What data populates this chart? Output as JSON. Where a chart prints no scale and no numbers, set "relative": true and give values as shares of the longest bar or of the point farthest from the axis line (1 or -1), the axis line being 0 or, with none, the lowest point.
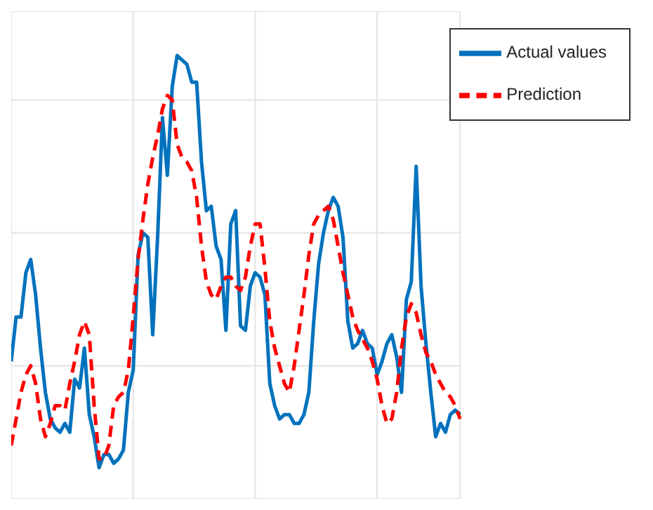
{
  "chart_data": {
    "type": "line",
    "relative": true,
    "grid": true,
    "legend": "top right",
    "marker": "none",
    "categories": [
      null,
      null,
      null,
      null,
      null,
      null,
      null,
      null,
      null,
      null,
      null,
      null,
      null,
      null,
      null,
      null,
      null,
      null,
      null,
      null,
      null,
      null,
      null,
      null,
      null,
      null,
      null,
      null,
      null,
      null,
      null,
      null,
      null,
      null,
      null,
      null,
      null,
      null,
      null,
      null,
      null,
      null,
      null,
      null,
      null,
      null,
      null,
      null,
      null,
      null,
      null,
      null,
      null,
      null,
      null,
      null,
      null,
      null,
      null,
      null,
      null,
      null,
      null,
      null,
      null,
      null,
      null,
      null,
      null,
      null,
      null,
      null,
      null,
      null,
      null,
      null,
      null,
      null,
      null,
      null,
      null,
      null,
      null,
      null,
      null,
      null,
      null,
      null,
      null,
      null,
      null,
      null,
      null
    ],
    "series": [
      {
        "name": "Actual values",
        "color": "#0072bd",
        "line_style": "solid",
        "values": [
          0.31,
          0.41,
          0.41,
          0.51,
          0.54,
          0.46,
          0.34,
          0.24,
          0.18,
          0.16,
          0.15,
          0.17,
          0.15,
          0.27,
          0.25,
          0.34,
          0.19,
          0.14,
          0.07,
          0.1,
          0.1,
          0.08,
          0.09,
          0.11,
          0.24,
          0.29,
          0.55,
          0.6,
          0.59,
          0.37,
          0.59,
          0.86,
          0.73,
          0.93,
          1,
          0.99,
          0.98,
          0.94,
          0.94,
          0.76,
          0.65,
          0.66,
          0.57,
          0.54,
          0.38,
          0.62,
          0.65,
          0.39,
          0.38,
          0.48,
          0.51,
          0.5,
          0.46,
          0.26,
          0.21,
          0.18,
          0.19,
          0.19,
          0.17,
          0.17,
          0.19,
          0.24,
          0.4,
          0.53,
          0.6,
          0.65,
          0.68,
          0.66,
          0.59,
          0.4,
          0.34,
          0.35,
          0.38,
          0.35,
          0.34,
          0.28,
          0.31,
          0.35,
          0.37,
          0.32,
          0.24,
          0.45,
          0.49,
          0.75,
          0.48,
          0.35,
          0.24,
          0.14,
          0.17,
          0.15,
          0.19,
          0.2,
          0.19
        ]
      },
      {
        "name": "Prediction",
        "color": "#ff0000",
        "line_style": "dashed",
        "values": [
          0.12,
          0.18,
          0.24,
          0.28,
          0.3,
          0.26,
          0.18,
          0.14,
          0.17,
          0.21,
          0.21,
          0.2,
          0.26,
          0.31,
          0.37,
          0.4,
          0.37,
          0.21,
          0.09,
          0.09,
          0.12,
          0.21,
          0.23,
          0.24,
          0.29,
          0.41,
          0.54,
          0.63,
          0.71,
          0.77,
          0.82,
          0.88,
          0.91,
          0.9,
          0.8,
          0.77,
          0.76,
          0.74,
          0.68,
          0.57,
          0.49,
          0.46,
          0.45,
          0.48,
          0.5,
          0.5,
          0.48,
          0.47,
          0.5,
          0.57,
          0.62,
          0.62,
          0.52,
          0.4,
          0.34,
          0.3,
          0.26,
          0.24,
          0.3,
          0.38,
          0.46,
          0.55,
          0.62,
          0.64,
          0.65,
          0.66,
          0.63,
          0.57,
          0.51,
          0.46,
          0.41,
          0.38,
          0.36,
          0.34,
          0.31,
          0.27,
          0.21,
          0.17,
          0.18,
          0.24,
          0.34,
          0.41,
          0.44,
          0.42,
          0.37,
          0.33,
          0.31,
          0.28,
          0.26,
          0.24,
          0.23,
          0.21,
          0.18
        ]
      }
    ]
  }
}
